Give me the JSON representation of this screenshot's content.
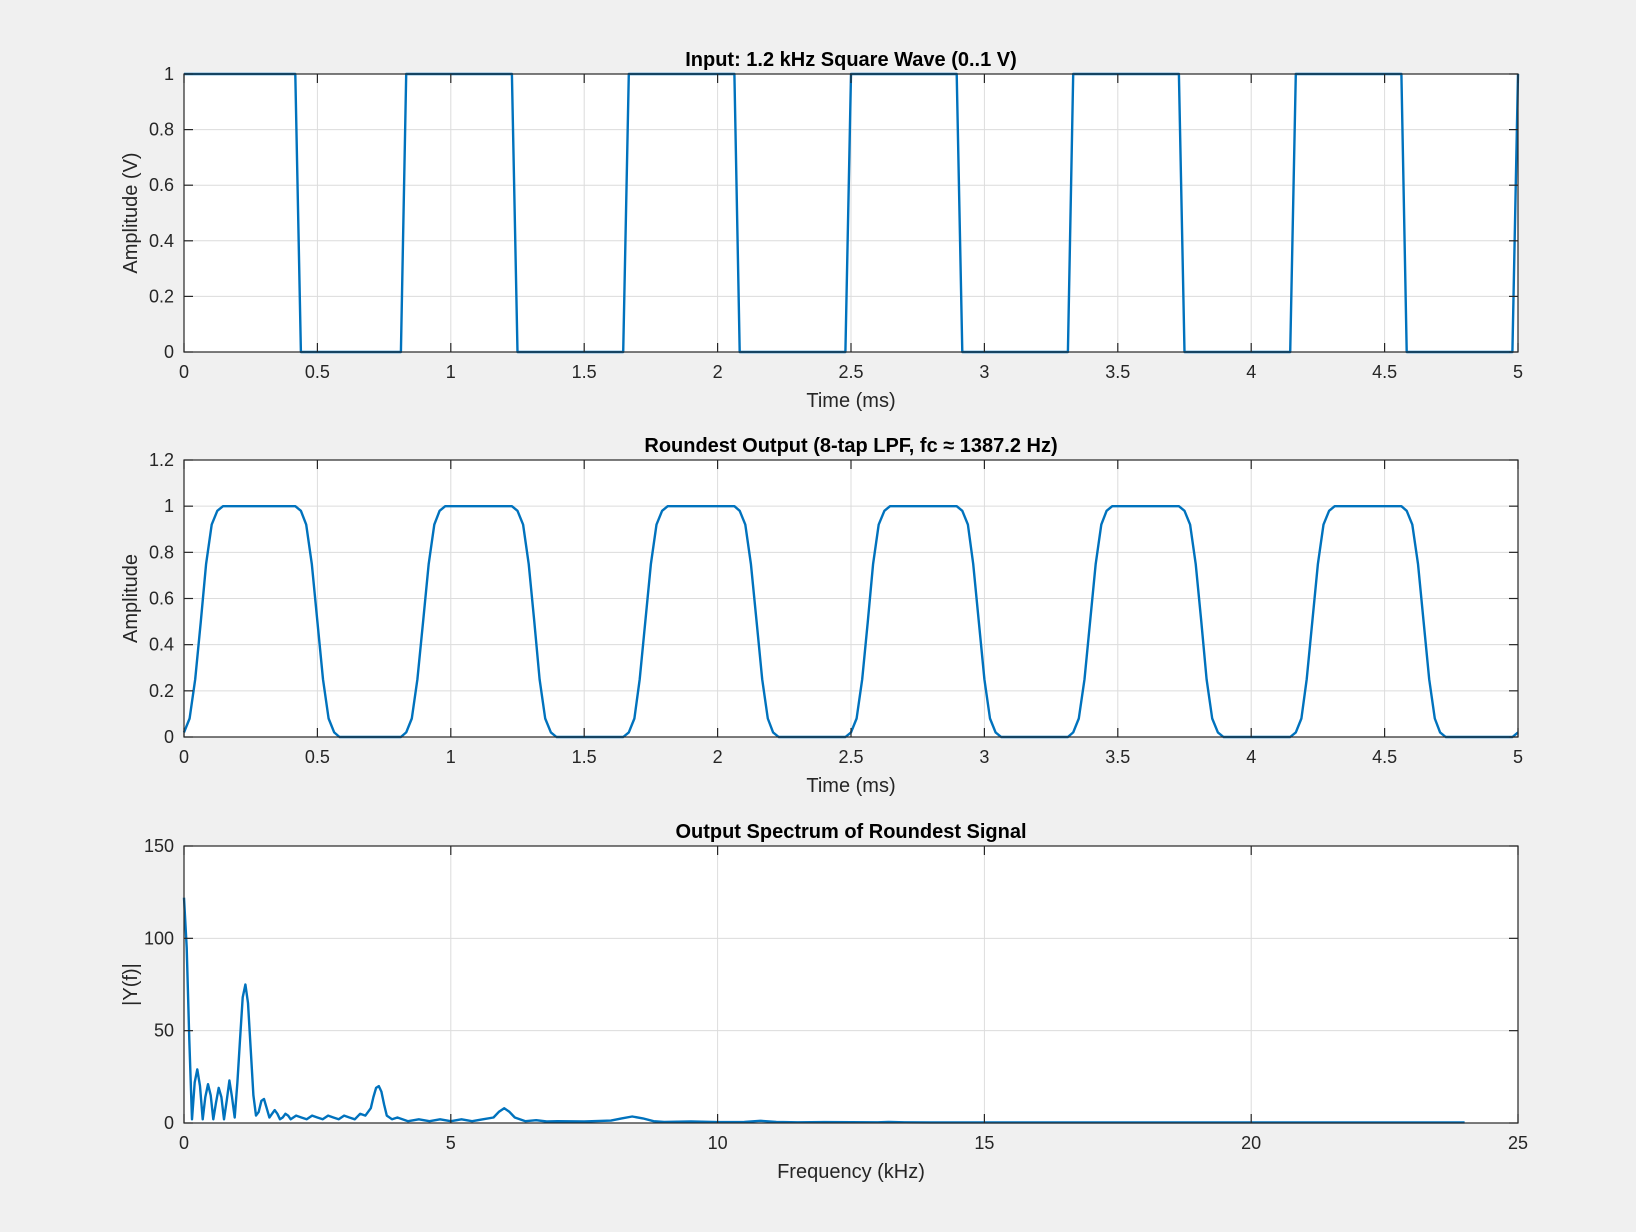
{
  "figure": {
    "background": "#f0f0f0",
    "line_color": "#0072bd"
  },
  "chart_data": [
    {
      "type": "line",
      "title": "Input: 1.2 kHz Square Wave (0..1 V)",
      "xlabel": "Time (ms)",
      "ylabel": "Amplitude (V)",
      "xlim": [
        0,
        5
      ],
      "ylim": [
        0,
        1
      ],
      "xticks": [
        0,
        0.5,
        1,
        1.5,
        2,
        2.5,
        3,
        3.5,
        4,
        4.5,
        5
      ],
      "xticklabels": [
        "0",
        "0.5",
        "1",
        "1.5",
        "2",
        "2.5",
        "3",
        "3.5",
        "4",
        "4.5",
        "5"
      ],
      "yticks": [
        0,
        0.2,
        0.4,
        0.6,
        0.8,
        1
      ],
      "yticklabels": [
        "0",
        "0.2",
        "0.4",
        "0.6",
        "0.8",
        "1"
      ],
      "grid": true,
      "series": [
        {
          "x": [
            0,
            0.417,
            0.438,
            0.813,
            0.833,
            1.229,
            1.25,
            1.646,
            1.667,
            2.063,
            2.083,
            2.479,
            2.5,
            2.896,
            2.917,
            3.313,
            3.333,
            3.729,
            3.75,
            4.146,
            4.167,
            4.563,
            4.583,
            4.979,
            5.0
          ],
          "y": [
            1,
            1,
            0,
            0,
            1,
            1,
            0,
            0,
            1,
            1,
            0,
            0,
            1,
            1,
            0,
            0,
            1,
            1,
            0,
            0,
            1,
            1,
            0,
            0,
            1
          ]
        }
      ]
    },
    {
      "type": "line",
      "title": "Roundest Output (8-tap LPF, fc ≈ 1387.2 Hz)",
      "xlabel": "Time (ms)",
      "ylabel": "Amplitude",
      "xlim": [
        0,
        5
      ],
      "ylim": [
        0,
        1.2
      ],
      "xticks": [
        0,
        0.5,
        1,
        1.5,
        2,
        2.5,
        3,
        3.5,
        4,
        4.5,
        5
      ],
      "xticklabels": [
        "0",
        "0.5",
        "1",
        "1.5",
        "2",
        "2.5",
        "3",
        "3.5",
        "4",
        "4.5",
        "5"
      ],
      "yticks": [
        0,
        0.2,
        0.4,
        0.6,
        0.8,
        1,
        1.2
      ],
      "yticklabels": [
        "0",
        "0.2",
        "0.4",
        "0.6",
        "0.8",
        "1",
        "1.2"
      ],
      "grid": true,
      "series": [
        {
          "x": [
            0,
            0.021,
            0.042,
            0.063,
            0.083,
            0.104,
            0.125,
            0.146,
            0.417,
            0.438,
            0.458,
            0.479,
            0.5,
            0.521,
            0.542,
            0.563,
            0.583,
            0.813,
            0.833,
            0.854,
            0.875,
            0.896,
            0.917,
            0.938,
            0.958,
            0.979,
            1.229,
            1.25,
            1.271,
            1.292,
            1.313,
            1.333,
            1.354,
            1.375,
            1.396,
            1.646,
            1.667,
            1.688,
            1.708,
            1.729,
            1.75,
            1.771,
            1.792,
            1.813,
            2.063,
            2.083,
            2.104,
            2.125,
            2.146,
            2.167,
            2.188,
            2.208,
            2.229,
            2.479,
            2.5,
            2.521,
            2.542,
            2.563,
            2.583,
            2.604,
            2.625,
            2.646,
            2.896,
            2.917,
            2.938,
            2.958,
            2.979,
            3.0,
            3.021,
            3.042,
            3.063,
            3.313,
            3.333,
            3.354,
            3.375,
            3.396,
            3.417,
            3.438,
            3.458,
            3.479,
            3.729,
            3.75,
            3.771,
            3.792,
            3.813,
            3.833,
            3.854,
            3.875,
            3.896,
            4.146,
            4.167,
            4.188,
            4.208,
            4.229,
            4.25,
            4.271,
            4.292,
            4.313,
            4.563,
            4.583,
            4.604,
            4.625,
            4.646,
            4.667,
            4.688,
            4.708,
            4.729,
            4.979,
            5.0
          ],
          "y": [
            0.02,
            0.08,
            0.25,
            0.5,
            0.75,
            0.92,
            0.98,
            1.0,
            1.0,
            0.98,
            0.92,
            0.75,
            0.5,
            0.25,
            0.08,
            0.02,
            0.0,
            0.0,
            0.02,
            0.08,
            0.25,
            0.5,
            0.75,
            0.92,
            0.98,
            1.0,
            1.0,
            0.98,
            0.92,
            0.75,
            0.5,
            0.25,
            0.08,
            0.02,
            0.0,
            0.0,
            0.02,
            0.08,
            0.25,
            0.5,
            0.75,
            0.92,
            0.98,
            1.0,
            1.0,
            0.98,
            0.92,
            0.75,
            0.5,
            0.25,
            0.08,
            0.02,
            0.0,
            0.0,
            0.02,
            0.08,
            0.25,
            0.5,
            0.75,
            0.92,
            0.98,
            1.0,
            1.0,
            0.98,
            0.92,
            0.75,
            0.5,
            0.25,
            0.08,
            0.02,
            0.0,
            0.0,
            0.02,
            0.08,
            0.25,
            0.5,
            0.75,
            0.92,
            0.98,
            1.0,
            1.0,
            0.98,
            0.92,
            0.75,
            0.5,
            0.25,
            0.08,
            0.02,
            0.0,
            0.0,
            0.02,
            0.08,
            0.25,
            0.5,
            0.75,
            0.92,
            0.98,
            1.0,
            1.0,
            0.98,
            0.92,
            0.75,
            0.5,
            0.25,
            0.08,
            0.02,
            0.0,
            0.0,
            0.02
          ]
        }
      ]
    },
    {
      "type": "line",
      "title": "Output Spectrum of Roundest Signal",
      "xlabel": "Frequency (kHz)",
      "ylabel": "|Y(f)|",
      "xlim": [
        0,
        25
      ],
      "ylim": [
        0,
        150
      ],
      "xticks": [
        0,
        5,
        10,
        15,
        20,
        25
      ],
      "xticklabels": [
        "0",
        "5",
        "10",
        "15",
        "20",
        "25"
      ],
      "yticks": [
        0,
        50,
        100,
        150
      ],
      "yticklabels": [
        "0",
        "50",
        "100",
        "150"
      ],
      "grid": true,
      "series": [
        {
          "x": [
            0,
            0.05,
            0.1,
            0.15,
            0.2,
            0.25,
            0.3,
            0.35,
            0.4,
            0.45,
            0.5,
            0.55,
            0.6,
            0.65,
            0.7,
            0.75,
            0.8,
            0.85,
            0.9,
            0.95,
            1.0,
            1.05,
            1.1,
            1.15,
            1.2,
            1.25,
            1.3,
            1.35,
            1.4,
            1.45,
            1.5,
            1.55,
            1.6,
            1.65,
            1.7,
            1.75,
            1.8,
            1.85,
            1.9,
            1.95,
            2.0,
            2.1,
            2.2,
            2.3,
            2.4,
            2.5,
            2.6,
            2.7,
            2.8,
            2.9,
            3.0,
            3.1,
            3.2,
            3.3,
            3.4,
            3.5,
            3.55,
            3.6,
            3.65,
            3.7,
            3.75,
            3.8,
            3.9,
            4.0,
            4.2,
            4.4,
            4.6,
            4.8,
            5.0,
            5.2,
            5.4,
            5.6,
            5.8,
            5.9,
            6.0,
            6.1,
            6.2,
            6.4,
            6.6,
            6.8,
            7.0,
            7.5,
            8.0,
            8.2,
            8.4,
            8.6,
            8.8,
            9.0,
            9.5,
            10.0,
            10.5,
            10.8,
            11.1,
            11.5,
            12.0,
            13.0,
            13.2,
            13.5,
            14.0,
            15.0,
            16.0,
            17.0,
            18.0,
            19.0,
            20.0,
            21.0,
            22.0,
            23.0,
            24.0
          ],
          "y": [
            122,
            95,
            45,
            2,
            22,
            29,
            20,
            2,
            14,
            21,
            15,
            2,
            11,
            19,
            14,
            2,
            12,
            23,
            14,
            3,
            22,
            45,
            68,
            75,
            65,
            40,
            15,
            4,
            6,
            12,
            13,
            8,
            3,
            5,
            7,
            5,
            2,
            3,
            5,
            4,
            2,
            4,
            3,
            2,
            4,
            3,
            2,
            4,
            3,
            2,
            4,
            3,
            2,
            5,
            4,
            8,
            14,
            19,
            20,
            17,
            10,
            4,
            2,
            3,
            1,
            2,
            1,
            2,
            1,
            2,
            1,
            2,
            3,
            6,
            8,
            6,
            3,
            1,
            1.5,
            0.8,
            1,
            0.8,
            1.3,
            2.5,
            3.5,
            2.5,
            1,
            0.6,
            0.8,
            0.5,
            0.6,
            1.2,
            0.6,
            0.4,
            0.5,
            0.4,
            0.6,
            0.4,
            0.3,
            0.3,
            0.3,
            0.3,
            0.3,
            0.3,
            0.3,
            0.3,
            0.3,
            0.3,
            0.3
          ]
        }
      ]
    }
  ]
}
